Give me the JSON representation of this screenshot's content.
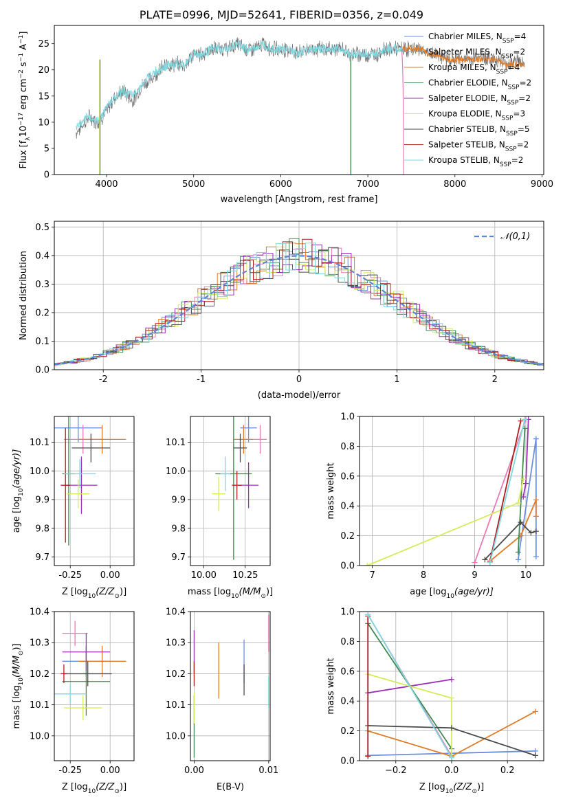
{
  "figure": {
    "title": "PLATE=0996, MJD=52641, FIBERID=0356, z=0.049"
  },
  "colors": {
    "Chabrier MILES": "#6a8fdd",
    "Salpeter MILES": "#e87ab6",
    "Kroupa MILES": "#e07b27",
    "Chabrier ELODIE": "#3e8a50",
    "Salpeter ELODIE": "#9b30b5",
    "Kroupa ELODIE": "#d4ec5a",
    "Chabrier STELIB": "#4a4a4a",
    "Salpeter STELIB": "#b01c1c",
    "Kroupa STELIB": "#7fd8e0"
  },
  "chart_data": [
    {
      "id": "spectrum",
      "type": "line",
      "title": "PLATE=0996, MJD=52641, FIBERID=0356, z=0.049",
      "xlabel": "wavelength [Angstrom, rest frame]",
      "ylabel_parts": [
        "Flux [f",
        "λ",
        "10",
        "−17",
        " erg cm",
        "−2",
        " s",
        "−1",
        " A",
        "−1",
        "]"
      ],
      "xlim": [
        3400,
        9020
      ],
      "ylim": [
        0,
        28.5
      ],
      "xticks": [
        4000,
        5000,
        6000,
        7000,
        8000,
        9000
      ],
      "yticks": [
        0,
        5,
        10,
        15,
        20,
        25
      ],
      "legend_loc": "right",
      "legend": [
        {
          "name": "Chabrier MILES",
          "label": "Chabrier MILES, N",
          "sub": "SSP",
          "val": "=4"
        },
        {
          "name": "Salpeter MILES",
          "label": "Salpeter MILES, N",
          "sub": "SSP",
          "val": "=2"
        },
        {
          "name": "Kroupa MILES",
          "label": "Kroupa MILES, N",
          "sub": "SSP",
          "val": "=4"
        },
        {
          "name": "Chabrier ELODIE",
          "label": "Chabrier ELODIE, N",
          "sub": "SSP",
          "val": "=2"
        },
        {
          "name": "Salpeter ELODIE",
          "label": "Salpeter ELODIE, N",
          "sub": "SSP",
          "val": "=2"
        },
        {
          "name": "Kroupa ELODIE",
          "label": "Kroupa ELODIE, N",
          "sub": "SSP",
          "val": "=3"
        },
        {
          "name": "Chabrier STELIB",
          "label": "Chabrier STELIB, N",
          "sub": "SSP",
          "val": "=5"
        },
        {
          "name": "Salpeter STELIB",
          "label": "Salpeter STELIB, N",
          "sub": "SSP",
          "val": "=2"
        },
        {
          "name": "Kroupa STELIB",
          "label": "Kroupa STELIB, N",
          "sub": "SSP",
          "val": "=2"
        }
      ],
      "series": [
        {
          "name": "data",
          "color": "#666666",
          "x": [
            3650,
            3800,
            3900,
            4000,
            4100,
            4200,
            4300,
            4400,
            4500,
            4600,
            4700,
            4800,
            4900,
            5000,
            5100,
            5200,
            5300,
            5400,
            5500,
            5600,
            5700,
            5800,
            5900,
            6000,
            6100,
            6200,
            6300,
            6400,
            6500,
            6600,
            6700,
            6800,
            6900,
            7000,
            7100,
            7200,
            7300,
            7400,
            7500,
            7600,
            7700,
            7800,
            7900,
            8000,
            8100,
            8200,
            8300,
            8400,
            8500,
            8600,
            8700,
            8800
          ],
          "y": [
            8,
            11,
            10,
            12,
            15,
            16,
            14,
            17,
            18,
            20,
            21,
            21,
            21,
            23,
            23,
            24,
            24,
            24,
            25,
            24,
            24,
            25,
            24,
            24,
            24,
            23,
            24,
            24,
            24,
            24,
            24,
            23,
            23,
            23,
            23,
            24,
            24,
            24,
            24,
            24,
            23,
            23,
            22,
            22,
            22,
            22,
            23,
            22,
            22,
            21,
            22,
            21
          ]
        },
        {
          "name": "model",
          "color": "#7fd8e0",
          "x": [
            3650,
            3800,
            3900,
            4000,
            4100,
            4200,
            4300,
            4400,
            4500,
            4600,
            4700,
            4800,
            4900,
            5000,
            5100,
            5200,
            5300,
            5400,
            5500,
            5600,
            5700,
            5800,
            5900,
            6000,
            6100,
            6200,
            6300,
            6400,
            6500,
            6600,
            6700,
            6800,
            6900,
            7000,
            7100,
            7200,
            7300,
            7400
          ],
          "y": [
            9,
            11,
            10,
            13,
            15,
            16,
            15,
            17,
            19,
            20,
            21,
            21,
            21,
            23,
            23,
            24,
            24,
            24,
            25,
            24,
            24,
            25,
            24,
            24,
            24,
            23,
            24,
            24,
            24,
            24,
            24,
            23,
            23,
            23,
            23,
            24,
            24,
            24
          ]
        },
        {
          "name": "model-extended",
          "color": "#e07b27",
          "x": [
            7400,
            7500,
            7600,
            7700,
            7800,
            7900,
            8000,
            8100,
            8200,
            8300,
            8400,
            8500,
            8600,
            8700,
            8800
          ],
          "y": [
            24,
            24,
            24,
            23,
            23,
            22,
            22,
            22,
            22,
            22,
            22,
            22,
            21,
            21,
            21
          ]
        }
      ],
      "spikes": [
        {
          "x": 3920,
          "color": "#d4ec5a"
        },
        {
          "x": 3925,
          "color": "#3e8a50"
        },
        {
          "x": 6800,
          "color": "#d4ec5a"
        },
        {
          "x": 6805,
          "color": "#3e8a50"
        }
      ],
      "cutoff": {
        "x": 7410,
        "color": "#e87ab6"
      }
    },
    {
      "id": "residual-histogram",
      "type": "histogram",
      "xlabel": "(data-model)/error",
      "ylabel": "Normed distribution",
      "xlim": [
        -2.5,
        2.5
      ],
      "ylim": [
        0,
        0.52
      ],
      "xticks": [
        -2,
        -1,
        0,
        1,
        2
      ],
      "yticks": [
        0.0,
        0.1,
        0.2,
        0.3,
        0.4,
        0.5
      ],
      "legend": "𝒩(0,1)",
      "legend_loc": "upper right",
      "bin_width": 0.1
    },
    {
      "id": "age-vs-Z",
      "type": "errorbar",
      "xlabel_parts": [
        "Z [log",
        "10",
        "(Z/Z",
        "⊙",
        ")]"
      ],
      "ylabel_parts": [
        "age  [log",
        "10",
        "(age/yr)]"
      ],
      "xlim": [
        -0.35,
        0.15
      ],
      "ylim": [
        9.67,
        10.19
      ],
      "xticks": [
        -0.25,
        0.0
      ],
      "yticks": [
        9.7,
        9.8,
        9.9,
        10.0,
        10.1
      ],
      "points": [
        {
          "name": "Chabrier MILES",
          "x": -0.2,
          "y": 10.15,
          "xerr": 0.15,
          "yerr": 0.05
        },
        {
          "name": "Salpeter MILES",
          "x": -0.17,
          "y": 10.11,
          "xerr": 0.12,
          "yerr": 0.05
        },
        {
          "name": "Kroupa MILES",
          "x": -0.05,
          "y": 10.11,
          "xerr": 0.15,
          "yerr": 0.05
        },
        {
          "name": "Chabrier ELODIE",
          "x": -0.26,
          "y": 9.99,
          "xerr": 0.04,
          "yerr": 0.25
        },
        {
          "name": "Salpeter ELODIE",
          "x": -0.18,
          "y": 9.95,
          "xerr": 0.1,
          "yerr": 0.1
        },
        {
          "name": "Kroupa ELODIE",
          "x": -0.2,
          "y": 9.92,
          "xerr": 0.07,
          "yerr": 0.05
        },
        {
          "name": "Chabrier STELIB",
          "x": -0.12,
          "y": 10.08,
          "xerr": 0.12,
          "yerr": 0.05
        },
        {
          "name": "Salpeter STELIB",
          "x": -0.28,
          "y": 9.95,
          "xerr": 0.03,
          "yerr": 0.2
        },
        {
          "name": "Kroupa STELIB",
          "x": -0.19,
          "y": 9.99,
          "xerr": 0.1,
          "yerr": 0.05
        }
      ]
    },
    {
      "id": "age-vs-mass",
      "type": "errorbar",
      "xlabel_parts": [
        "mass [log",
        "10",
        "(M/M",
        "⊙",
        ")]"
      ],
      "xlim": [
        9.92,
        10.4
      ],
      "ylim": [
        9.67,
        10.19
      ],
      "xticks": [
        10.0,
        10.25
      ],
      "yticks": [
        9.7,
        9.8,
        9.9,
        10.0,
        10.1
      ],
      "points": [
        {
          "name": "Chabrier MILES",
          "x": 10.27,
          "y": 10.15,
          "xerr": 0.05,
          "yerr": 0.05
        },
        {
          "name": "Salpeter MILES",
          "x": 10.34,
          "y": 10.11,
          "xerr": 0.04,
          "yerr": 0.05
        },
        {
          "name": "Kroupa MILES",
          "x": 10.24,
          "y": 10.11,
          "xerr": 0.06,
          "yerr": 0.05
        },
        {
          "name": "Chabrier ELODIE",
          "x": 10.18,
          "y": 9.99,
          "xerr": 0.11,
          "yerr": 0.3
        },
        {
          "name": "Salpeter ELODIE",
          "x": 10.27,
          "y": 9.95,
          "xerr": 0.06,
          "yerr": 0.08
        },
        {
          "name": "Kroupa ELODIE",
          "x": 10.09,
          "y": 9.92,
          "xerr": 0.04,
          "yerr": 0.06
        },
        {
          "name": "Chabrier STELIB",
          "x": 10.22,
          "y": 10.08,
          "xerr": 0.04,
          "yerr": 0.05
        },
        {
          "name": "Salpeter STELIB",
          "x": 10.2,
          "y": 9.95,
          "xerr": 0.03,
          "yerr": 0.05
        },
        {
          "name": "Kroupa STELIB",
          "x": 10.13,
          "y": 9.99,
          "xerr": 0.03,
          "yerr": 0.06
        }
      ]
    },
    {
      "id": "massweight-vs-age",
      "type": "line",
      "xlabel_parts": [
        "age  [log",
        "10",
        "(age/yr)]"
      ],
      "ylabel": "mass weight",
      "xlim": [
        6.75,
        10.35
      ],
      "ylim": [
        0,
        1
      ],
      "xticks": [
        7,
        8,
        9,
        10
      ],
      "yticks": [
        0.0,
        0.2,
        0.4,
        0.6,
        0.8,
        1.0
      ],
      "series": [
        {
          "name": "Chabrier MILES",
          "x": [
            9.85,
            10.2,
            10.2
          ],
          "y": [
            0.04,
            0.85,
            0.06
          ]
        },
        {
          "name": "Salpeter MILES",
          "x": [
            9.0,
            10.0
          ],
          "y": [
            0.02,
            0.98
          ]
        },
        {
          "name": "Kroupa MILES",
          "x": [
            9.3,
            9.9,
            10.2,
            10.2
          ],
          "y": [
            0.03,
            0.2,
            0.44,
            0.33
          ]
        },
        {
          "name": "Chabrier ELODIE",
          "x": [
            9.85,
            9.98
          ],
          "y": [
            0.09,
            0.92
          ]
        },
        {
          "name": "Salpeter ELODIE",
          "x": [
            9.95,
            10.0,
            10.05
          ],
          "y": [
            0.46,
            0.55,
            0.98
          ]
        },
        {
          "name": "Kroupa ELODIE",
          "x": [
            6.9,
            9.85,
            9.95
          ],
          "y": [
            0.0,
            0.42,
            0.58
          ]
        },
        {
          "name": "Chabrier STELIB",
          "x": [
            9.2,
            9.9,
            10.1,
            10.2
          ],
          "y": [
            0.04,
            0.29,
            0.22,
            0.23
          ]
        },
        {
          "name": "Salpeter STELIB",
          "x": [
            9.3,
            9.9
          ],
          "y": [
            0.03,
            0.97
          ]
        },
        {
          "name": "Kroupa STELIB",
          "x": [
            9.3,
            9.98
          ],
          "y": [
            0.02,
            0.98
          ]
        }
      ]
    },
    {
      "id": "mass-vs-Z",
      "type": "errorbar",
      "xlabel_parts": [
        "Z [log",
        "10",
        "(Z/Z",
        "⊙",
        ")]"
      ],
      "ylabel_parts": [
        "mass [log",
        "10",
        "(M/M",
        "⊙",
        ")]"
      ],
      "xlim": [
        -0.35,
        0.15
      ],
      "ylim": [
        9.92,
        10.4
      ],
      "xticks": [
        -0.25,
        0.0
      ],
      "yticks": [
        10.0,
        10.1,
        10.2,
        10.3,
        10.4
      ],
      "points": [
        {
          "name": "Chabrier MILES",
          "x": -0.15,
          "y": 10.24,
          "xerr": 0.15,
          "yerr": 0.05
        },
        {
          "name": "Salpeter MILES",
          "x": -0.22,
          "y": 10.33,
          "xerr": 0.08,
          "yerr": 0.04
        },
        {
          "name": "Kroupa MILES",
          "x": -0.05,
          "y": 10.24,
          "xerr": 0.15,
          "yerr": 0.05
        },
        {
          "name": "Chabrier ELODIE",
          "x": -0.15,
          "y": 10.175,
          "xerr": 0.15,
          "yerr": 0.11
        },
        {
          "name": "Salpeter ELODIE",
          "x": -0.15,
          "y": 10.27,
          "xerr": 0.15,
          "yerr": 0.06
        },
        {
          "name": "Kroupa ELODIE",
          "x": -0.17,
          "y": 10.09,
          "xerr": 0.12,
          "yerr": 0.04
        },
        {
          "name": "Chabrier STELIB",
          "x": -0.14,
          "y": 10.2,
          "xerr": 0.15,
          "yerr": 0.04
        },
        {
          "name": "Salpeter STELIB",
          "x": -0.29,
          "y": 10.2,
          "xerr": 0.02,
          "yerr": 0.03
        },
        {
          "name": "Kroupa STELIB",
          "x": -0.25,
          "y": 10.135,
          "xerr": 0.1,
          "yerr": 0.03
        }
      ]
    },
    {
      "id": "mass-vs-EBV",
      "type": "errorbar",
      "xlabel": "E(B-V)",
      "xlim": [
        -0.0005,
        0.0102
      ],
      "ylim": [
        9.92,
        10.4
      ],
      "xticks": [
        0.0,
        0.01
      ],
      "xticklabels": [
        "0.00",
        "0.01"
      ],
      "yticks": [
        10.0,
        10.1,
        10.2,
        10.3,
        10.4
      ],
      "points": [
        {
          "name": "Chabrier MILES",
          "x": 0.0067,
          "y": 10.24,
          "xerr": 0.0,
          "yerr": 0.07
        },
        {
          "name": "Salpeter MILES",
          "x": 0.01,
          "y": 10.33,
          "xerr": 0.0,
          "yerr": 0.06
        },
        {
          "name": "Kroupa MILES",
          "x": 0.0033,
          "y": 10.21,
          "xerr": 0.0,
          "yerr": 0.09
        },
        {
          "name": "Chabrier ELODIE",
          "x": 0.0,
          "y": 10.03,
          "xerr": 0.0,
          "yerr": 0.1
        },
        {
          "name": "Salpeter ELODIE",
          "x": 0.0,
          "y": 10.27,
          "xerr": 0.0,
          "yerr": 0.07
        },
        {
          "name": "Kroupa ELODIE",
          "x": 0.0,
          "y": 10.09,
          "xerr": 0.0,
          "yerr": 0.05
        },
        {
          "name": "Chabrier STELIB",
          "x": 0.0067,
          "y": 10.18,
          "xerr": 0.0,
          "yerr": 0.05
        },
        {
          "name": "Salpeter STELIB",
          "x": 0.0,
          "y": 10.2,
          "xerr": 0.0,
          "yerr": 0.04
        },
        {
          "name": "Kroupa STELIB",
          "x": 0.01,
          "y": 10.14,
          "xerr": 0.0,
          "yerr": 0.05
        }
      ]
    },
    {
      "id": "massweight-vs-Z",
      "type": "line",
      "xlabel_parts": [
        "Z [log",
        "10",
        "(Z/Z",
        "⊙",
        ")]"
      ],
      "ylabel": "mass weight",
      "xlim": [
        -0.33,
        0.33
      ],
      "ylim": [
        0,
        1
      ],
      "xticks": [
        -0.2,
        0.0,
        0.2
      ],
      "yticks": [
        0.0,
        0.2,
        0.4,
        0.6,
        0.8,
        1.0
      ],
      "series": [
        {
          "name": "Chabrier MILES",
          "x": [
            -0.3,
            0.0,
            0.3
          ],
          "y": [
            0.035,
            0.05,
            0.065
          ]
        },
        {
          "name": "Salpeter MILES",
          "x": [
            -0.3,
            0.0
          ],
          "y": [
            0.98,
            0.03
          ]
        },
        {
          "name": "Kroupa MILES",
          "x": [
            -0.3,
            0.0,
            0.3
          ],
          "y": [
            0.2,
            0.03,
            0.33
          ]
        },
        {
          "name": "Chabrier ELODIE",
          "x": [
            -0.3,
            0.0
          ],
          "y": [
            0.92,
            0.08
          ]
        },
        {
          "name": "Salpeter ELODIE",
          "x": [
            -0.3,
            0.0
          ],
          "y": [
            0.455,
            0.545
          ]
        },
        {
          "name": "Kroupa ELODIE",
          "x": [
            -0.3,
            0.0,
            0.0
          ],
          "y": [
            0.58,
            0.42,
            0.0
          ]
        },
        {
          "name": "Chabrier STELIB",
          "x": [
            -0.3,
            0.0,
            0.3
          ],
          "y": [
            0.235,
            0.22,
            0.035
          ]
        },
        {
          "name": "Salpeter STELIB",
          "x": [
            -0.3,
            -0.3
          ],
          "y": [
            0.03,
            0.97
          ]
        },
        {
          "name": "Kroupa STELIB",
          "x": [
            -0.3,
            0.0
          ],
          "y": [
            0.98,
            0.02
          ]
        }
      ]
    }
  ]
}
